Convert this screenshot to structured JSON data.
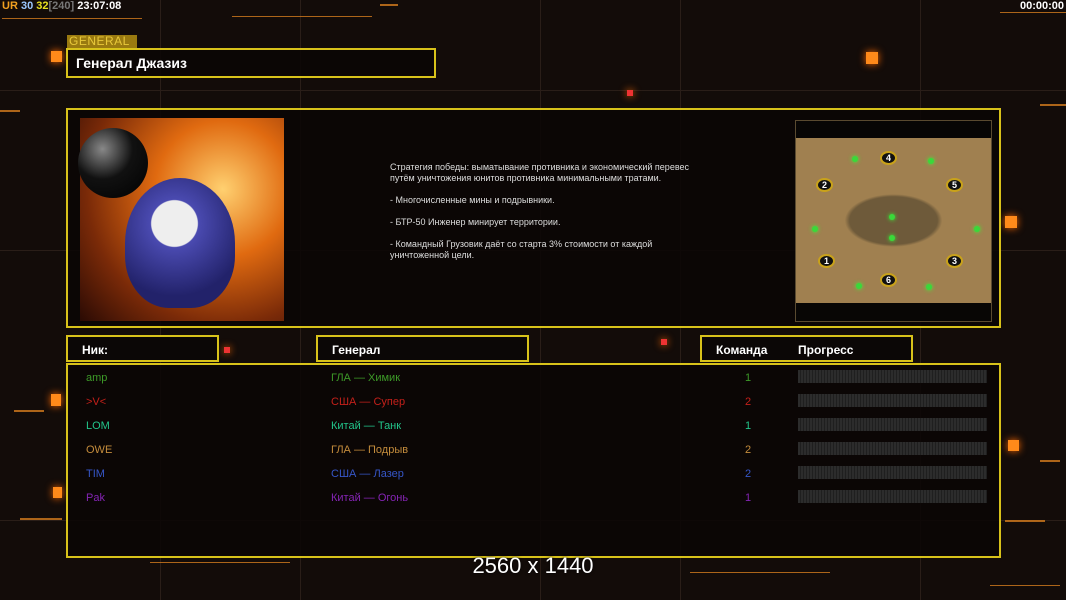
{
  "hud": {
    "ur_label": "UR",
    "v1": "30",
    "v2": "32",
    "v3": "[240]",
    "clock": "23:07:08",
    "timer": "00:00:00"
  },
  "general": {
    "tab_label": "GENERAL",
    "title": "Генерал Джазиз",
    "description": [
      "Стратегия победы: выматывание противника и экономический перевес путём уничтожения юнитов противника минимальными тратами.",
      "- Многочисленные мины и подрывники.",
      "- БТР-50 Инженер минирует территории.",
      "- Командный Грузовик даёт со старта 3% стоимости от каждой уничтоженной цели."
    ]
  },
  "map": {
    "start_positions": [
      "1",
      "2",
      "3",
      "4",
      "5",
      "6"
    ]
  },
  "table": {
    "headers": {
      "nick": "Ник:",
      "general": "Генерал",
      "team": "Команда",
      "progress": "Прогресс"
    },
    "rows": [
      {
        "nick": "amp",
        "general": "ГЛА — Химик",
        "team": "1",
        "progress": 0,
        "color": "#3d9a28"
      },
      {
        "nick": ">V<",
        "general": "США — Супер",
        "team": "2",
        "progress": 0,
        "color": "#c4201a"
      },
      {
        "nick": "LOM",
        "general": "Китай — Танк",
        "team": "1",
        "progress": 0,
        "color": "#22c48a"
      },
      {
        "nick": "OWE",
        "general": "ГЛА — Подрыв",
        "team": "2",
        "progress": 0,
        "color": "#c48c3c"
      },
      {
        "nick": "TIM",
        "general": "США — Лазер",
        "team": "2",
        "progress": 0,
        "color": "#3656c8"
      },
      {
        "nick": "Pak",
        "general": "Китай — Огонь",
        "team": "1",
        "progress": 0,
        "color": "#8424b4"
      }
    ]
  },
  "footer": {
    "resolution": "2560 x 1440"
  },
  "colors": {
    "accent": "#d8c21a",
    "orange": "#ff8a1a"
  }
}
